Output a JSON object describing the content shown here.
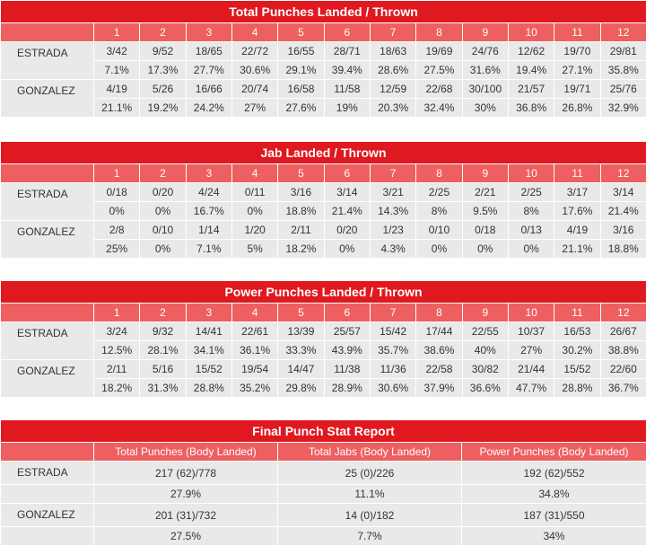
{
  "tables": [
    {
      "title": "Total Punches Landed / Thrown",
      "rounds": [
        "1",
        "2",
        "3",
        "4",
        "5",
        "6",
        "7",
        "8",
        "9",
        "10",
        "11",
        "12"
      ],
      "fighters": [
        {
          "name": "ESTRADA",
          "landed": [
            "3/42",
            "9/52",
            "18/65",
            "22/72",
            "16/55",
            "28/71",
            "18/63",
            "19/69",
            "24/76",
            "12/62",
            "19/70",
            "29/81"
          ],
          "pct": [
            "7.1%",
            "17.3%",
            "27.7%",
            "30.6%",
            "29.1%",
            "39.4%",
            "28.6%",
            "27.5%",
            "31.6%",
            "19.4%",
            "27.1%",
            "35.8%"
          ]
        },
        {
          "name": "GONZALEZ",
          "landed": [
            "4/19",
            "5/26",
            "16/66",
            "20/74",
            "16/58",
            "11/58",
            "12/59",
            "22/68",
            "30/100",
            "21/57",
            "19/71",
            "25/76"
          ],
          "pct": [
            "21.1%",
            "19.2%",
            "24.2%",
            "27%",
            "27.6%",
            "19%",
            "20.3%",
            "32.4%",
            "30%",
            "36.8%",
            "26.8%",
            "32.9%"
          ]
        }
      ]
    },
    {
      "title": "Jab Landed / Thrown",
      "rounds": [
        "1",
        "2",
        "3",
        "4",
        "5",
        "6",
        "7",
        "8",
        "9",
        "10",
        "11",
        "12"
      ],
      "fighters": [
        {
          "name": "ESTRADA",
          "landed": [
            "0/18",
            "0/20",
            "4/24",
            "0/11",
            "3/16",
            "3/14",
            "3/21",
            "2/25",
            "2/21",
            "2/25",
            "3/17",
            "3/14"
          ],
          "pct": [
            "0%",
            "0%",
            "16.7%",
            "0%",
            "18.8%",
            "21.4%",
            "14.3%",
            "8%",
            "9.5%",
            "8%",
            "17.6%",
            "21.4%"
          ]
        },
        {
          "name": "GONZALEZ",
          "landed": [
            "2/8",
            "0/10",
            "1/14",
            "1/20",
            "2/11",
            "0/20",
            "1/23",
            "0/10",
            "0/18",
            "0/13",
            "4/19",
            "3/16"
          ],
          "pct": [
            "25%",
            "0%",
            "7.1%",
            "5%",
            "18.2%",
            "0%",
            "4.3%",
            "0%",
            "0%",
            "0%",
            "21.1%",
            "18.8%"
          ]
        }
      ]
    },
    {
      "title": "Power Punches Landed / Thrown",
      "rounds": [
        "1",
        "2",
        "3",
        "4",
        "5",
        "6",
        "7",
        "8",
        "9",
        "10",
        "11",
        "12"
      ],
      "fighters": [
        {
          "name": "ESTRADA",
          "landed": [
            "3/24",
            "9/32",
            "14/41",
            "22/61",
            "13/39",
            "25/57",
            "15/42",
            "17/44",
            "22/55",
            "10/37",
            "16/53",
            "26/67"
          ],
          "pct": [
            "12.5%",
            "28.1%",
            "34.1%",
            "36.1%",
            "33.3%",
            "43.9%",
            "35.7%",
            "38.6%",
            "40%",
            "27%",
            "30.2%",
            "38.8%"
          ]
        },
        {
          "name": "GONZALEZ",
          "landed": [
            "2/11",
            "5/16",
            "15/52",
            "19/54",
            "14/47",
            "11/38",
            "11/36",
            "22/58",
            "30/82",
            "21/44",
            "15/52",
            "22/60"
          ],
          "pct": [
            "18.2%",
            "31.3%",
            "28.8%",
            "35.2%",
            "29.8%",
            "28.9%",
            "30.6%",
            "37.9%",
            "36.6%",
            "47.7%",
            "28.8%",
            "36.7%"
          ]
        }
      ]
    }
  ],
  "final": {
    "title": "Final Punch Stat Report",
    "headers": [
      "Total Punches (Body Landed)",
      "Total Jabs (Body Landed)",
      "Power Punches (Body Landed)"
    ],
    "fighters": [
      {
        "name": "ESTRADA",
        "values": [
          "217 (62)/778",
          "25 (0)/226",
          "192 (62)/552"
        ],
        "pct": [
          "27.9%",
          "11.1%",
          "34.8%"
        ]
      },
      {
        "name": "GONZALEZ",
        "values": [
          "201 (31)/732",
          "14 (0)/182",
          "187 (31)/550"
        ],
        "pct": [
          "27.5%",
          "7.7%",
          "34%"
        ]
      }
    ]
  },
  "colors": {
    "title_bg": "#e0181f",
    "header_bg": "#ee5f61",
    "cell_bg": "#e9e9e9"
  }
}
